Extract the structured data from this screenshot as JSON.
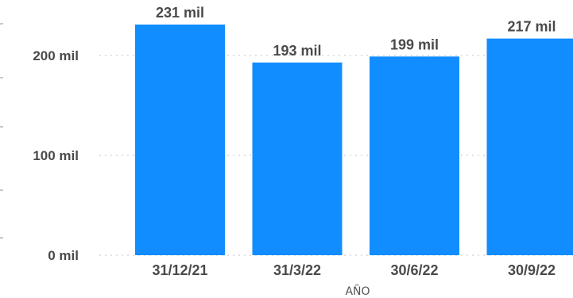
{
  "chart_data": {
    "type": "bar",
    "xlabel": "AÑO",
    "ylabel": "",
    "categories": [
      "31/12/21",
      "31/3/22",
      "30/6/22",
      "30/9/22"
    ],
    "values": [
      231000,
      193000,
      199000,
      217000
    ],
    "data_labels": [
      "231 mil",
      "193 mil",
      "199 mil",
      "217 mil"
    ],
    "y_ticks": [
      0,
      100000,
      200000
    ],
    "y_tick_labels": [
      "0 mil",
      "100 mil",
      "200 mil"
    ],
    "ylim": [
      0,
      231000
    ],
    "grid": true,
    "bar_color": "#118dff"
  }
}
